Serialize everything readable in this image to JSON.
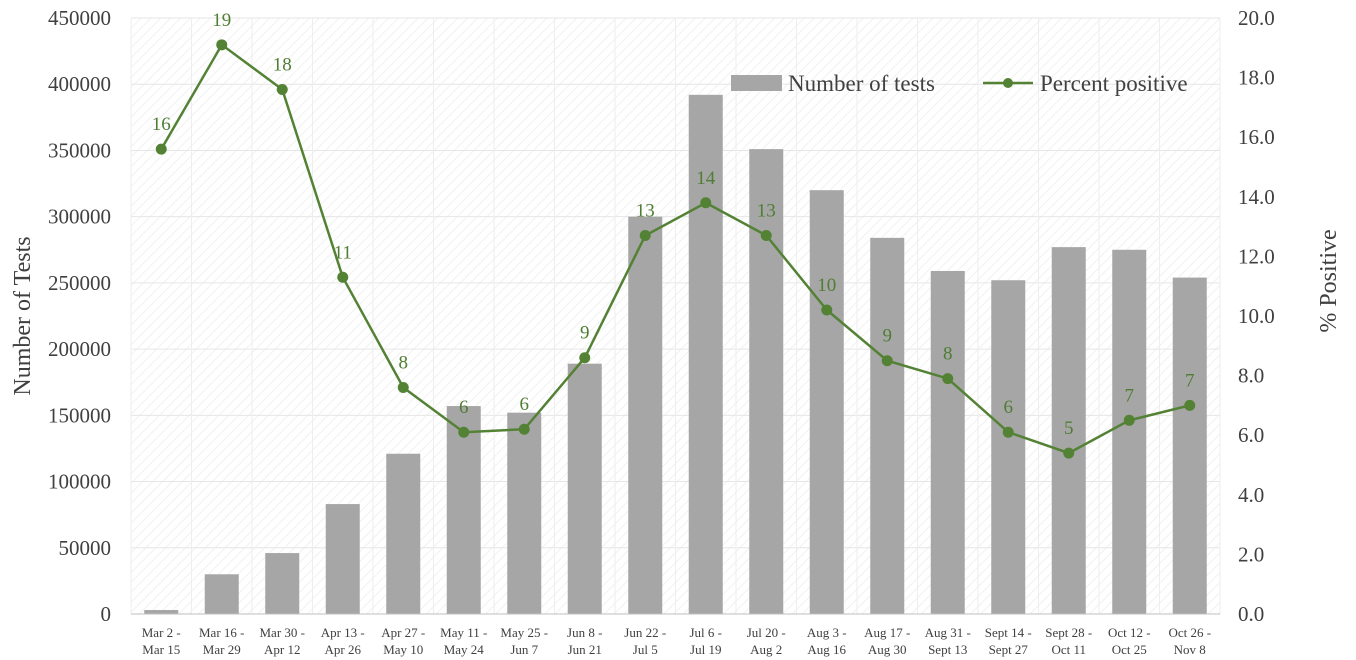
{
  "chart_data": {
    "type": "bar",
    "categories": [
      [
        "Mar 2 -",
        "Mar 15"
      ],
      [
        "Mar 16 -",
        "Mar 29"
      ],
      [
        "Mar 30 -",
        "Apr 12"
      ],
      [
        "Apr 13 -",
        "Apr 26"
      ],
      [
        "Apr 27 -",
        "May 10"
      ],
      [
        "May 11 -",
        "May 24"
      ],
      [
        "May 25 -",
        "Jun 7"
      ],
      [
        "Jun 8 -",
        "Jun 21"
      ],
      [
        "Jun 22 -",
        "Jul 5"
      ],
      [
        "Jul 6 -",
        "Jul 19"
      ],
      [
        "Jul 20 -",
        "Aug 2"
      ],
      [
        "Aug 3 -",
        "Aug 16"
      ],
      [
        "Aug 17 -",
        "Aug 30"
      ],
      [
        "Aug 31 -",
        "Sept 13"
      ],
      [
        "Sept 14 -",
        "Sept 27"
      ],
      [
        "Sept 28 -",
        "Oct 11"
      ],
      [
        "Oct 12 -",
        "Oct 25"
      ],
      [
        "Oct 26 -",
        "Nov 8"
      ]
    ],
    "series": [
      {
        "name": "Number of tests",
        "type": "bar",
        "axis": "left",
        "color": "#a6a6a6",
        "values": [
          3000,
          30000,
          46000,
          83000,
          121000,
          157000,
          152000,
          189000,
          300000,
          392000,
          351000,
          320000,
          284000,
          259000,
          252000,
          277000,
          275000,
          254000
        ]
      },
      {
        "name": "Percent positive",
        "type": "line",
        "axis": "right",
        "color": "#548235",
        "values": [
          15.6,
          19.1,
          17.6,
          11.3,
          7.6,
          6.1,
          6.2,
          8.6,
          12.7,
          13.8,
          12.7,
          10.2,
          8.5,
          7.9,
          6.1,
          5.4,
          6.5,
          7.0
        ],
        "labels": [
          "16",
          "19",
          "18",
          "11",
          "8",
          "6",
          "6",
          "9",
          "13",
          "14",
          "13",
          "10",
          "9",
          "8",
          "6",
          "5",
          "7",
          "7"
        ]
      }
    ],
    "ylabel": "Number of Tests",
    "y2label": "% Positive",
    "ylim": [
      0,
      450000
    ],
    "y2lim": [
      0,
      20
    ],
    "yticks": [
      "0",
      "50000",
      "100000",
      "150000",
      "200000",
      "250000",
      "300000",
      "350000",
      "400000",
      "450000"
    ],
    "y2ticks": [
      "0.0",
      "2.0",
      "4.0",
      "6.0",
      "8.0",
      "10.0",
      "12.0",
      "14.0",
      "16.0",
      "18.0",
      "20.0"
    ],
    "grid": true,
    "legend": "top-right"
  }
}
